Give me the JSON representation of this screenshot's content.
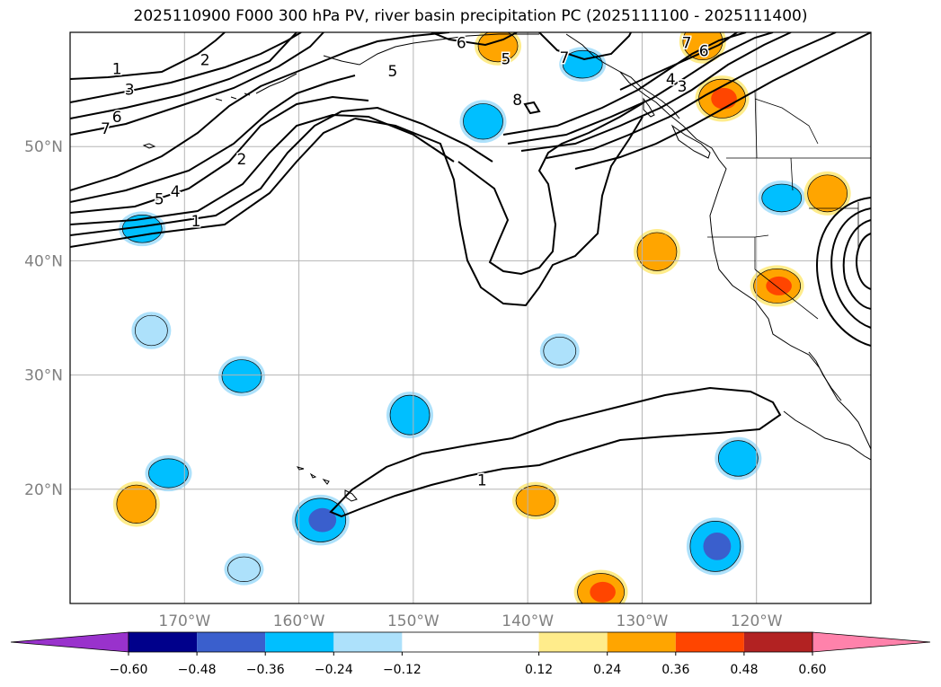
{
  "title": "2025110900 F000 300 hPa PV, river basin precipitation PC (2025111100 - 2025111400)",
  "map": {
    "projection": "PlateCarree",
    "lon_range": [
      -180,
      -110
    ],
    "lat_range": [
      10,
      60
    ],
    "gridlines": true,
    "lon_ticks": [
      {
        "lon": -170,
        "label": "170°W"
      },
      {
        "lon": -160,
        "label": "160°W"
      },
      {
        "lon": -150,
        "label": "150°W"
      },
      {
        "lon": -140,
        "label": "140°W"
      },
      {
        "lon": -130,
        "label": "130°W"
      },
      {
        "lon": -120,
        "label": "120°W"
      }
    ],
    "lat_ticks": [
      {
        "lat": 20,
        "label": "20°N"
      },
      {
        "lat": 30,
        "label": "30°N"
      },
      {
        "lat": 40,
        "label": "40°N"
      },
      {
        "lat": 50,
        "label": "50°N"
      }
    ],
    "tick_color": "#808080",
    "pv_contour_labels": [
      {
        "text": "1",
        "lon": -175.9,
        "lat": 56.8
      },
      {
        "text": "3",
        "lon": -174.8,
        "lat": 55.0
      },
      {
        "text": "6",
        "lon": -175.9,
        "lat": 52.6
      },
      {
        "text": "7",
        "lon": -176.9,
        "lat": 51.6
      },
      {
        "text": "2",
        "lon": -168.2,
        "lat": 57.6
      },
      {
        "text": "5",
        "lon": -172.2,
        "lat": 45.4
      },
      {
        "text": "4",
        "lon": -170.8,
        "lat": 46.1
      },
      {
        "text": "2",
        "lon": -165.0,
        "lat": 48.9
      },
      {
        "text": "1",
        "lon": -169.0,
        "lat": 43.5
      },
      {
        "text": "5",
        "lon": -151.8,
        "lat": 56.6
      },
      {
        "text": "6",
        "lon": -145.8,
        "lat": 59.1
      },
      {
        "text": "5",
        "lon": -141.9,
        "lat": 57.7
      },
      {
        "text": "7",
        "lon": -136.8,
        "lat": 57.8
      },
      {
        "text": "8",
        "lon": -140.9,
        "lat": 54.1
      },
      {
        "text": "6",
        "lon": -124.6,
        "lat": 58.4
      },
      {
        "text": "7",
        "lon": -126.1,
        "lat": 59.1
      },
      {
        "text": "4",
        "lon": -127.5,
        "lat": 55.9
      },
      {
        "text": "3",
        "lon": -126.5,
        "lat": 55.3
      },
      {
        "text": "1",
        "lon": -144.0,
        "lat": 20.8
      }
    ],
    "precip_patches": [
      {
        "lon": -173.7,
        "lat": 42.8,
        "value": -0.3
      },
      {
        "lon": -172.9,
        "lat": 33.9,
        "value": -0.2
      },
      {
        "lon": -165.0,
        "lat": 29.9,
        "value": -0.3
      },
      {
        "lon": -171.4,
        "lat": 21.4,
        "value": -0.3
      },
      {
        "lon": -174.2,
        "lat": 18.7,
        "value": 0.3
      },
      {
        "lon": -158.1,
        "lat": 17.3,
        "value": -0.45
      },
      {
        "lon": -164.8,
        "lat": 13.0,
        "value": -0.2
      },
      {
        "lon": -150.3,
        "lat": 26.5,
        "value": -0.3
      },
      {
        "lon": -143.9,
        "lat": 52.2,
        "value": -0.3
      },
      {
        "lon": -142.6,
        "lat": 58.8,
        "value": 0.3
      },
      {
        "lon": -135.2,
        "lat": 57.2,
        "value": -0.3
      },
      {
        "lon": -124.7,
        "lat": 59.2,
        "value": 0.3
      },
      {
        "lon": -123.0,
        "lat": 54.2,
        "value": 0.4
      },
      {
        "lon": -118.2,
        "lat": 37.8,
        "value": 0.4
      },
      {
        "lon": -128.7,
        "lat": 40.8,
        "value": 0.3
      },
      {
        "lon": -137.2,
        "lat": 32.1,
        "value": -0.2
      },
      {
        "lon": -139.3,
        "lat": 19.0,
        "value": 0.3
      },
      {
        "lon": -123.6,
        "lat": 15.0,
        "value": -0.45
      },
      {
        "lon": -121.6,
        "lat": 22.7,
        "value": -0.3
      },
      {
        "lon": -133.6,
        "lat": 11.0,
        "value": 0.4
      },
      {
        "lon": -117.8,
        "lat": 45.5,
        "value": -0.3
      },
      {
        "lon": -113.8,
        "lat": 45.9,
        "value": 0.3
      }
    ]
  },
  "colorbar": {
    "levels": [
      -0.72,
      -0.6,
      -0.48,
      -0.36,
      -0.24,
      -0.12,
      0.12,
      0.24,
      0.36,
      0.48,
      0.6,
      0.72
    ],
    "tick_labels": [
      "−0.60",
      "−0.48",
      "−0.36",
      "−0.24",
      "−0.12",
      "0.12",
      "0.24",
      "0.36",
      "0.48",
      "0.60"
    ],
    "colors": [
      "#9932CC",
      "#00008B",
      "#3A5FCD",
      "#00BFFF",
      "#ADE1FB",
      "#FFFFFF",
      "#FFEC8B",
      "#FFA500",
      "#FF4500",
      "#B22222",
      "#FF82AB"
    ],
    "extend": "both"
  }
}
